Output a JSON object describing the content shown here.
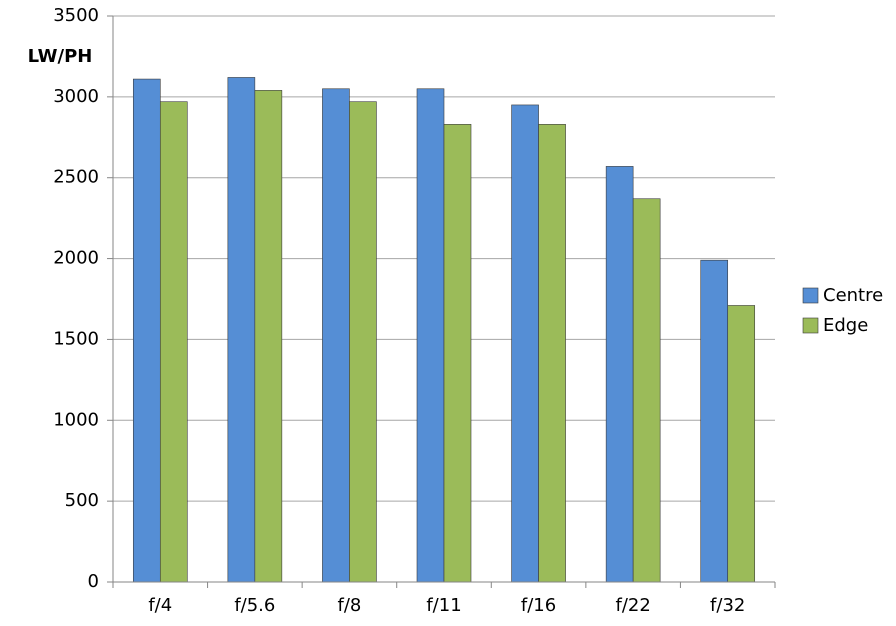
{
  "chart_data": {
    "type": "bar",
    "y_label": "LW/PH",
    "categories": [
      "f/4",
      "f/5.6",
      "f/8",
      "f/11",
      "f/16",
      "f/22",
      "f/32"
    ],
    "series": [
      {
        "name": "Centre",
        "color": "#558ed5",
        "values": [
          3110,
          3120,
          3050,
          3050,
          2950,
          2570,
          1990
        ]
      },
      {
        "name": "Edge",
        "color": "#9bbb59",
        "values": [
          2970,
          3040,
          2970,
          2830,
          2830,
          2370,
          1710
        ]
      }
    ],
    "ylim": [
      0,
      3500
    ],
    "yticks": [
      0,
      500,
      1000,
      1500,
      2000,
      2500,
      3000,
      3500
    ],
    "grid": true,
    "legend": "right"
  }
}
